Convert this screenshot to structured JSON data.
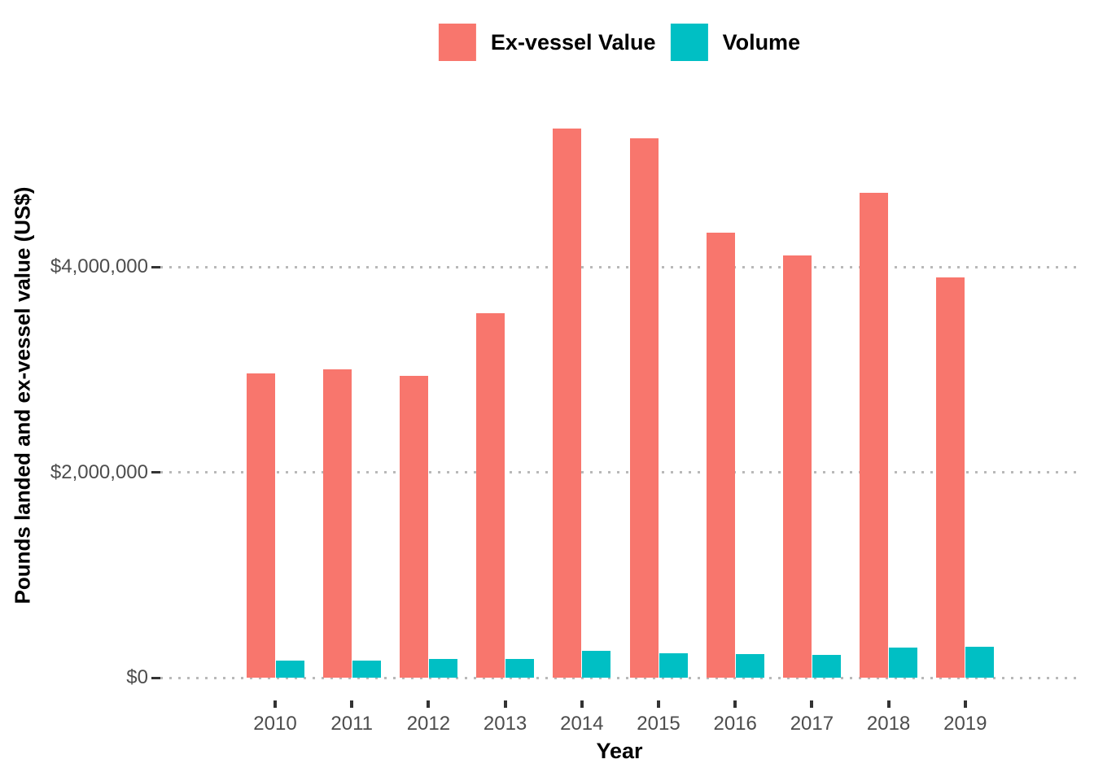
{
  "chart_data": {
    "type": "bar",
    "title": "",
    "bar_layout": "dodged",
    "categories": [
      "2010",
      "2011",
      "2012",
      "2013",
      "2014",
      "2015",
      "2016",
      "2017",
      "2018",
      "2019"
    ],
    "series": [
      {
        "name": "Ex-vessel Value",
        "color": "#F8766D",
        "values": [
          2960000,
          3000000,
          2940000,
          3550000,
          5350000,
          5250000,
          4330000,
          4110000,
          4720000,
          3900000
        ]
      },
      {
        "name": "Volume",
        "color": "#00BFC4",
        "values": [
          170000,
          170000,
          180000,
          180000,
          260000,
          240000,
          230000,
          220000,
          290000,
          300000
        ]
      }
    ],
    "xlabel": "Year",
    "ylabel": "Pounds landed and ex-vessel value (US$)",
    "y_ticks": [
      {
        "value": 0,
        "label": "$0"
      },
      {
        "value": 2000000,
        "label": "$2,000,000"
      },
      {
        "value": 4000000,
        "label": "$4,000,000"
      }
    ],
    "ylim": [
      0,
      5600000
    ],
    "grid": {
      "horizontal": true,
      "style": "dotted",
      "color": "#B9B9B9"
    },
    "legend_position": "top-center"
  },
  "colors": {
    "background": "#FFFFFF",
    "axis_text": "#4D4D4D",
    "axis_title": "#000000",
    "tick_mark": "#333333"
  }
}
